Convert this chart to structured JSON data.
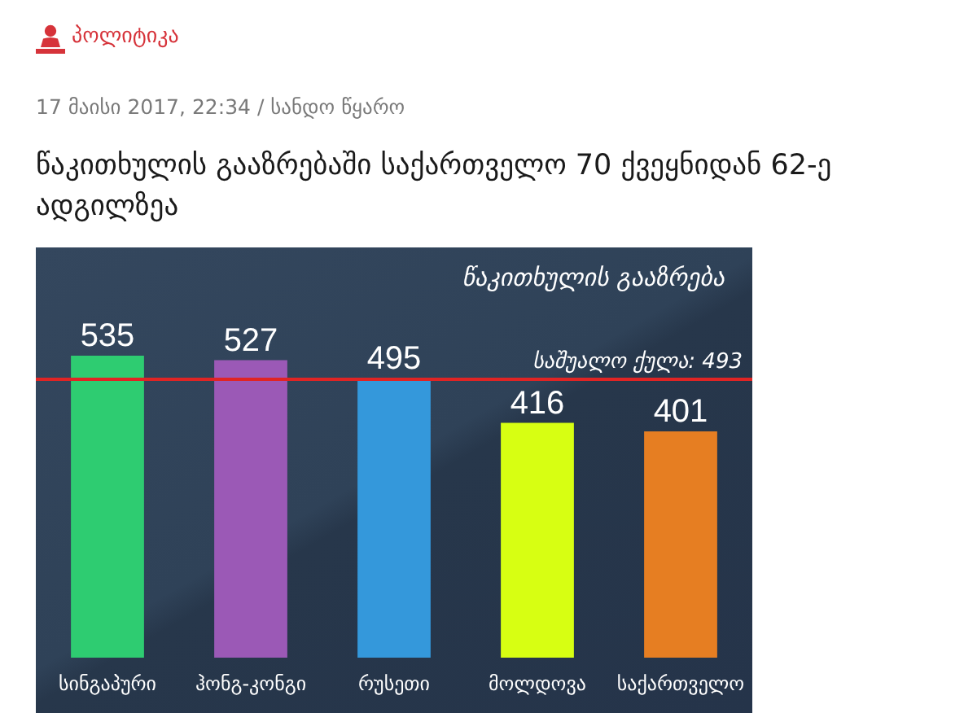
{
  "chart_data": {
    "type": "bar",
    "title": "წაკითხულის გააზრებაში საქართველო 70 ქვეყნიდან 62-ე ადგილზეა",
    "subtitle": "წაკითხულის გააზრება",
    "annotations": [
      "პოლიტიკა",
      "17 მაისი 2017, 22:34 / სანდო წყარო"
    ],
    "categories": [
      "სინგაპური",
      "ჰონგ-კონგი",
      "რუსეთი",
      "მოლდოვა",
      "საქართველო"
    ],
    "values": [
      535,
      527,
      495,
      416,
      401
    ],
    "colors": [
      "#2ecc71",
      "#9b59b6",
      "#3498db",
      "#d7ff12",
      "#e67e22"
    ],
    "data_labels": true,
    "tick_labels": "x",
    "ref_lines": [
      {
        "axis": "y",
        "value": 493,
        "label": "საშუალო ქულა: 493",
        "color": "#e02424"
      }
    ]
  }
}
